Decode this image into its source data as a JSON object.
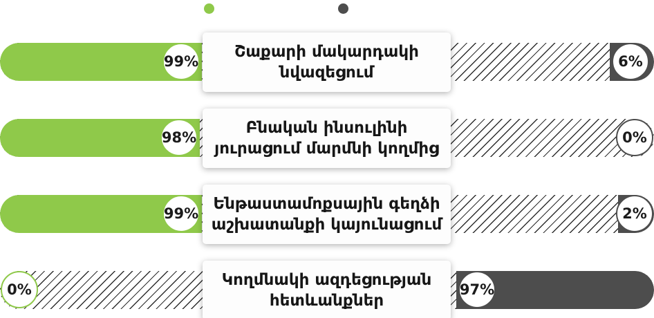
{
  "legend": {
    "dots": [
      {
        "name": "left-series-dot",
        "color": "#8FC94A"
      },
      {
        "name": "right-series-dot",
        "color": "#4D4D4D"
      }
    ]
  },
  "colors": {
    "left_bar": "#8FC94A",
    "right_bar": "#4D4D4D",
    "hatch_line": "#2e2e2e",
    "badge_bg": "#ffffff",
    "label_text": "#161616"
  },
  "chart_data": {
    "type": "bar",
    "orientation": "horizontal-opposed",
    "legend_position": "top-center",
    "grid": false,
    "series": [
      {
        "name": "left",
        "side": "left",
        "color": "#8FC94A"
      },
      {
        "name": "right",
        "side": "right",
        "color": "#4D4D4D"
      }
    ],
    "rows": [
      {
        "label": "Շաքարի մակարդակի նվազեցում",
        "lines": [
          "Շաքարի մակարդակի",
          "նվազեցում"
        ],
        "left_pct": 99,
        "left_value": "99%",
        "right_pct": 6,
        "right_value": "6%"
      },
      {
        "label": "Բնական ինսուլինի յուրացում մարմնի կողմից",
        "lines": [
          "Բնական ինսուլինի",
          "յուրացում մարմնի կողմից"
        ],
        "left_pct": 98,
        "left_value": "98%",
        "right_pct": 0,
        "right_value": "0%"
      },
      {
        "label": "Ենթաստամոքսային գեղձի աշխատանքի կայունացում",
        "lines": [
          "Ենթաստամոքսային գեղձի",
          "աշխատանքի կայունացում"
        ],
        "left_pct": 99,
        "left_value": "99%",
        "right_pct": 2,
        "right_value": "2%"
      },
      {
        "label": "Կողմնակի ազդեցության հետևանքներ",
        "lines": [
          "Կողմնակի ազդեցության",
          "հետևանքներ"
        ],
        "left_pct": 0,
        "left_value": "0%",
        "right_pct": 97,
        "right_value": "97%"
      }
    ]
  }
}
